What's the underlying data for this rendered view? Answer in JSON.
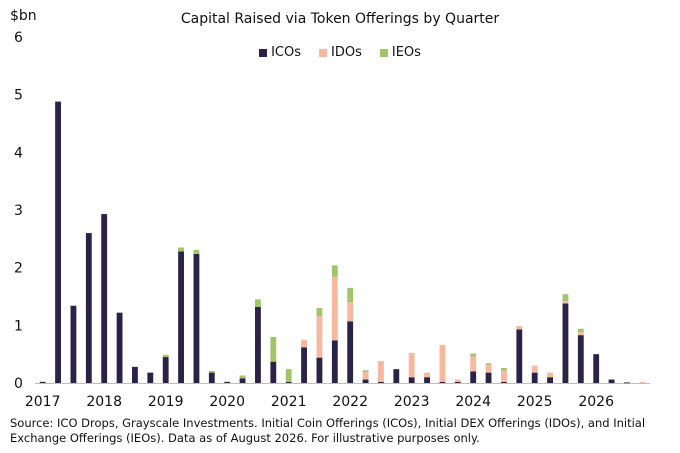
{
  "chart_data": {
    "type": "bar",
    "stacked": true,
    "title": "Capital Raised via Token Offerings by Quarter",
    "y_unit": "$bn",
    "ylim": [
      0,
      6
    ],
    "y_ticks": [
      0,
      1,
      2,
      3,
      4,
      5,
      6
    ],
    "x_year_labels": [
      "2017",
      "2018",
      "2019",
      "2020",
      "2021",
      "2022",
      "2023",
      "2024",
      "2025",
      "2026"
    ],
    "categories": [
      "2017 Q1",
      "2017 Q2",
      "2017 Q3",
      "2017 Q4",
      "2018 Q1",
      "2018 Q2",
      "2018 Q3",
      "2018 Q4",
      "2019 Q1",
      "2019 Q2",
      "2019 Q3",
      "2019 Q4",
      "2020 Q1",
      "2020 Q2",
      "2020 Q3",
      "2020 Q4",
      "2021 Q1",
      "2021 Q2",
      "2021 Q3",
      "2021 Q4",
      "2022 Q1",
      "2022 Q2",
      "2022 Q3",
      "2022 Q4",
      "2023 Q1",
      "2023 Q2",
      "2023 Q3",
      "2023 Q4",
      "2024 Q1",
      "2024 Q2",
      "2024 Q3",
      "2024 Q4",
      "2025 Q1",
      "2025 Q2",
      "2025 Q3",
      "2025 Q4",
      "2026 Q1",
      "2026 Q2",
      "2026 Q3",
      "2026 Q4"
    ],
    "series": [
      {
        "name": "ICOs",
        "color": "#2b2347",
        "values": [
          0.02,
          4.88,
          1.34,
          2.6,
          2.93,
          1.22,
          0.28,
          0.18,
          0.45,
          2.28,
          2.24,
          0.18,
          0.02,
          0.08,
          1.32,
          0.37,
          0.02,
          0.62,
          0.44,
          0.74,
          1.07,
          0.06,
          0.02,
          0.24,
          0.1,
          0.1,
          0.02,
          0.02,
          0.2,
          0.18,
          0.02,
          0.93,
          0.18,
          0.1,
          1.38,
          0.83,
          0.5,
          0.06,
          0.01,
          0.0
        ]
      },
      {
        "name": "IDOs",
        "color": "#f7b8a0",
        "values": [
          0.0,
          0.0,
          0.0,
          0.0,
          0.0,
          0.0,
          0.0,
          0.0,
          0.0,
          0.0,
          0.0,
          0.0,
          0.0,
          0.0,
          0.0,
          0.0,
          0.0,
          0.13,
          0.72,
          1.1,
          0.33,
          0.13,
          0.36,
          0.0,
          0.42,
          0.08,
          0.64,
          0.04,
          0.26,
          0.13,
          0.2,
          0.06,
          0.12,
          0.08,
          0.04,
          0.05,
          0.0,
          0.0,
          0.0,
          0.02
        ]
      },
      {
        "name": "IEOs",
        "color": "#a3c46b",
        "values": [
          0.0,
          0.0,
          0.0,
          0.0,
          0.0,
          0.0,
          0.0,
          0.0,
          0.04,
          0.07,
          0.07,
          0.03,
          0.0,
          0.05,
          0.13,
          0.43,
          0.22,
          0.0,
          0.14,
          0.2,
          0.25,
          0.03,
          0.0,
          0.0,
          0.0,
          0.0,
          0.0,
          0.0,
          0.05,
          0.03,
          0.04,
          0.0,
          0.0,
          0.0,
          0.12,
          0.06,
          0.0,
          0.0,
          0.0,
          0.0
        ]
      }
    ],
    "legend_position": "top-center",
    "grid": false
  },
  "footnote": "Source: ICO Drops, Grayscale Investments. Initial Coin Offerings (ICOs), Initial DEX Offerings (IDOs), and Initial Exchange Offerings (IEOs). Data as of August 2026. For illustrative purposes only."
}
